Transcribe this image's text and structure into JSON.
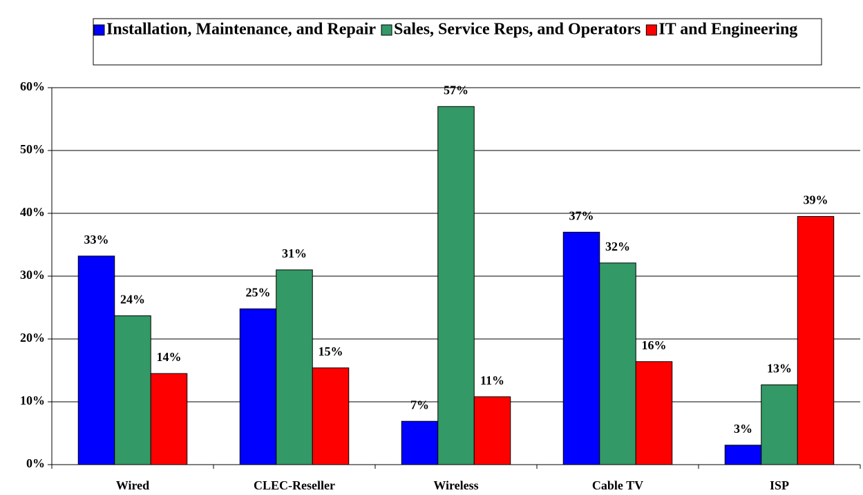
{
  "chart_data": {
    "type": "bar",
    "categories": [
      "Wired",
      "CLEC-Reseller",
      "Wireless",
      "Cable TV",
      "ISP"
    ],
    "series": [
      {
        "name": "Installation, Maintenance, and Repair",
        "color": "#0000ff",
        "values": [
          33.2,
          24.8,
          6.9,
          37.0,
          3.1
        ],
        "value_labels": [
          "33%",
          "25%",
          "7%",
          "37%",
          "3%"
        ]
      },
      {
        "name": "Sales, Service Reps, and Operators",
        "color": "#339966",
        "values": [
          23.7,
          31.0,
          57.0,
          32.1,
          12.7
        ],
        "value_labels": [
          "24%",
          "31%",
          "57%",
          "32%",
          "13%"
        ]
      },
      {
        "name": "IT and Engineering",
        "color": "#ff0000",
        "values": [
          14.5,
          15.4,
          10.8,
          16.4,
          39.5
        ],
        "value_labels": [
          "14%",
          "15%",
          "11%",
          "16%",
          "39%"
        ]
      }
    ],
    "ylim": [
      0,
      60
    ],
    "yticks": [
      {
        "value": 0,
        "label": "0%"
      },
      {
        "value": 10,
        "label": "10%"
      },
      {
        "value": 20,
        "label": "20%"
      },
      {
        "value": 30,
        "label": "30%"
      },
      {
        "value": 40,
        "label": "40%"
      },
      {
        "value": 50,
        "label": "50%"
      },
      {
        "value": 60,
        "label": "60%"
      }
    ],
    "grid": true,
    "legend": "top"
  }
}
